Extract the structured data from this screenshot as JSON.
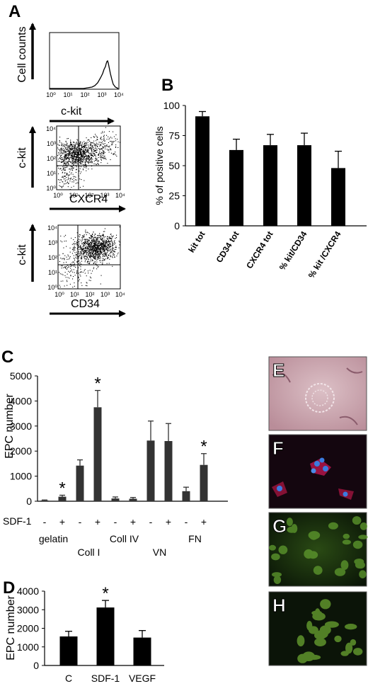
{
  "panels": {
    "A": "A",
    "B": "B",
    "C": "C",
    "D": "D",
    "E": "E",
    "F": "F",
    "G": "G",
    "H": "H"
  },
  "flow": {
    "histogram": {
      "ylabel": "Cell counts",
      "xlabel": "c-kit",
      "ticks": [
        "10⁰",
        "10¹",
        "10²",
        "10³",
        "10⁴"
      ]
    },
    "dot1": {
      "ylabel": "c-kit",
      "xlabel": "CXCR4",
      "ticks": [
        "10⁰",
        "10¹",
        "10²",
        "10³",
        "10⁴"
      ]
    },
    "dot2": {
      "ylabel": "c-kit",
      "xlabel": "CD34",
      "ticks": [
        "10⁰",
        "10¹",
        "10²",
        "10³",
        "10⁴"
      ]
    }
  },
  "images": {
    "E": {
      "color": "#c9a3ad"
    },
    "F": {
      "color": "#1a0a16"
    },
    "G": {
      "color": "#0c1a08"
    },
    "H": {
      "color": "#0c1a08"
    }
  },
  "chart_data": [
    {
      "id": "B",
      "type": "bar",
      "ylabel": "% of positive cells",
      "categories": [
        "kit tot",
        "CD34 tot",
        "CXCR4 tot",
        "% kit/CD34",
        "% kit /CXCR4"
      ],
      "values": [
        91,
        63,
        67,
        67,
        48
      ],
      "errors": [
        4,
        9,
        9,
        10,
        14
      ],
      "ylim": [
        0,
        100
      ],
      "yticks": [
        0,
        25,
        50,
        75,
        100
      ],
      "color": "#000000"
    },
    {
      "id": "C",
      "type": "bar",
      "ylabel": "EPC number",
      "sdf_label": "SDF-1",
      "sdf_signs": [
        "-",
        "+",
        "-",
        "+",
        "-",
        "+",
        "-",
        "+",
        "-",
        "+"
      ],
      "groups": [
        "gelatin",
        "Coll I",
        "Coll IV",
        "VN",
        "FN"
      ],
      "values": [
        30,
        180,
        1420,
        3750,
        110,
        100,
        2420,
        2400,
        400,
        1450
      ],
      "errors": [
        20,
        60,
        230,
        670,
        60,
        50,
        780,
        700,
        160,
        450
      ],
      "significant": [
        false,
        true,
        false,
        true,
        false,
        false,
        false,
        false,
        false,
        true
      ],
      "sig_marker": "*",
      "ylim": [
        0,
        5000
      ],
      "yticks": [
        0,
        1000,
        2000,
        3000,
        4000,
        5000
      ],
      "color": "#333333"
    },
    {
      "id": "D",
      "type": "bar",
      "ylabel": "EPC number",
      "categories": [
        "C",
        "SDF-1",
        "VEGF"
      ],
      "values": [
        1560,
        3120,
        1500
      ],
      "errors": [
        280,
        380,
        380
      ],
      "significant": [
        false,
        true,
        false
      ],
      "sig_marker": "*",
      "ylim": [
        0,
        4000
      ],
      "yticks": [
        0,
        1000,
        2000,
        3000,
        4000
      ],
      "color": "#000000"
    }
  ]
}
